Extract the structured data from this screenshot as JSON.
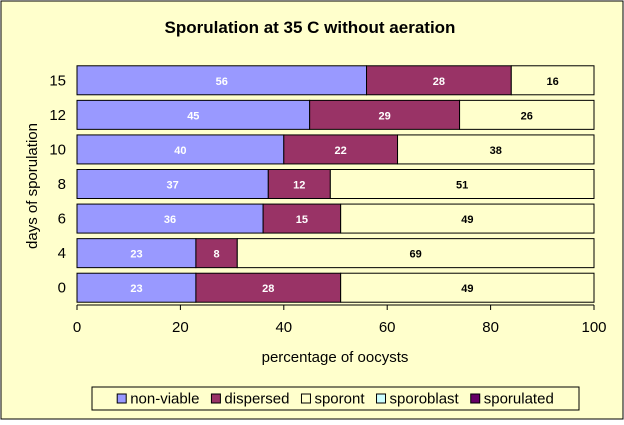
{
  "chart_data": {
    "type": "bar",
    "orientation": "horizontal",
    "stacked": true,
    "title": "Sporulation at 35 C without aeration",
    "xlabel": "percentage of oocysts",
    "ylabel": "days of sporulation",
    "xlim": [
      0,
      100
    ],
    "x_ticks": [
      "0",
      "20",
      "40",
      "60",
      "80",
      "100"
    ],
    "categories": [
      "15",
      "12",
      "10",
      "8",
      "6",
      "4",
      "0"
    ],
    "series": [
      {
        "name": "non-viable",
        "color": "#9999ff",
        "values": [
          56,
          45,
          40,
          37,
          36,
          23,
          23
        ]
      },
      {
        "name": "dispersed",
        "color": "#993366",
        "values": [
          28,
          29,
          22,
          12,
          15,
          8,
          28
        ]
      },
      {
        "name": "sporont",
        "color": "#ffffcc",
        "values": [
          16,
          26,
          38,
          51,
          49,
          69,
          49
        ]
      },
      {
        "name": "sporoblast",
        "color": "#ccffff",
        "values": [
          0,
          0,
          0,
          0,
          0,
          0,
          0
        ]
      },
      {
        "name": "sporulated",
        "color": "#660066",
        "values": [
          0,
          0,
          0,
          0,
          0,
          0,
          0
        ]
      }
    ],
    "data_labels": true,
    "grid": false,
    "legend_position": "bottom",
    "background_color": "#ffffcc"
  }
}
